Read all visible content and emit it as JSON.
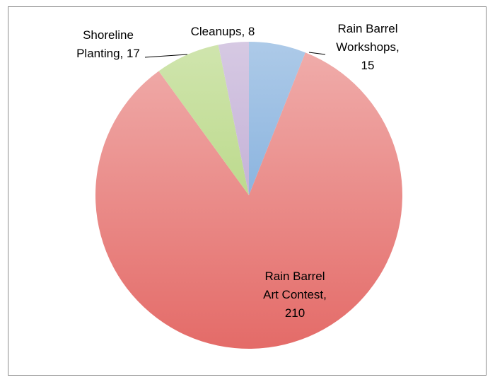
{
  "chart_data": {
    "type": "pie",
    "title": "",
    "slices": [
      {
        "label": "Rain Barrel Workshops",
        "value": 15,
        "color": "#6a9fd6",
        "label_lines": [
          "Rain Barrel",
          "Workshops,",
          "15"
        ]
      },
      {
        "label": "Rain Barrel Art Contest",
        "value": 210,
        "color": "#e46b68",
        "label_lines": [
          "Rain Barrel",
          "Art Contest,",
          "210"
        ]
      },
      {
        "label": "Shoreline Planting",
        "value": 17,
        "color": "#a9cf6c",
        "label_lines": [
          "Shoreline",
          "Planting, 17"
        ]
      },
      {
        "label": "Cleanups",
        "value": 8,
        "color": "#b49ccc",
        "label_lines": [
          "Cleanups, 8"
        ]
      }
    ],
    "start_angle_deg": 0,
    "direction": "clockwise",
    "legend": "none",
    "data_labels": "category-and-value"
  }
}
